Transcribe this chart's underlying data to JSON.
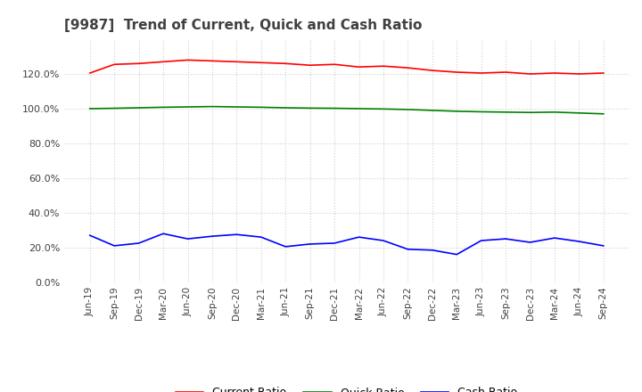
{
  "title": "[9987]  Trend of Current, Quick and Cash Ratio",
  "x_labels": [
    "Jun-19",
    "Sep-19",
    "Dec-19",
    "Mar-20",
    "Jun-20",
    "Sep-20",
    "Dec-20",
    "Mar-21",
    "Jun-21",
    "Sep-21",
    "Dec-21",
    "Mar-22",
    "Jun-22",
    "Sep-22",
    "Dec-22",
    "Mar-23",
    "Jun-23",
    "Sep-23",
    "Dec-23",
    "Mar-24",
    "Jun-24",
    "Sep-24"
  ],
  "current_ratio": [
    120.5,
    125.5,
    126.0,
    127.0,
    128.0,
    127.5,
    127.0,
    126.5,
    126.0,
    125.0,
    125.5,
    124.0,
    124.5,
    123.5,
    122.0,
    121.0,
    120.5,
    121.0,
    120.0,
    120.5,
    120.0,
    120.5
  ],
  "quick_ratio": [
    100.0,
    100.2,
    100.5,
    100.8,
    101.0,
    101.2,
    101.0,
    100.8,
    100.5,
    100.3,
    100.2,
    100.0,
    99.8,
    99.5,
    99.0,
    98.5,
    98.2,
    98.0,
    97.8,
    98.0,
    97.5,
    97.0
  ],
  "cash_ratio": [
    27.0,
    21.0,
    22.5,
    28.0,
    25.0,
    26.5,
    27.5,
    26.0,
    20.5,
    22.0,
    22.5,
    26.0,
    24.0,
    19.0,
    18.5,
    16.0,
    24.0,
    25.0,
    23.0,
    25.5,
    23.5,
    21.0
  ],
  "current_color": "#ff0000",
  "quick_color": "#008000",
  "cash_color": "#0000ff",
  "bg_color": "#ffffff",
  "plot_bg_color": "#ffffff",
  "grid_color": "#d0d0d0",
  "title_color": "#404040",
  "ylim": [
    0,
    140
  ],
  "yticks": [
    0,
    20,
    40,
    60,
    80,
    100,
    120
  ],
  "legend_labels": [
    "Current Ratio",
    "Quick Ratio",
    "Cash Ratio"
  ]
}
